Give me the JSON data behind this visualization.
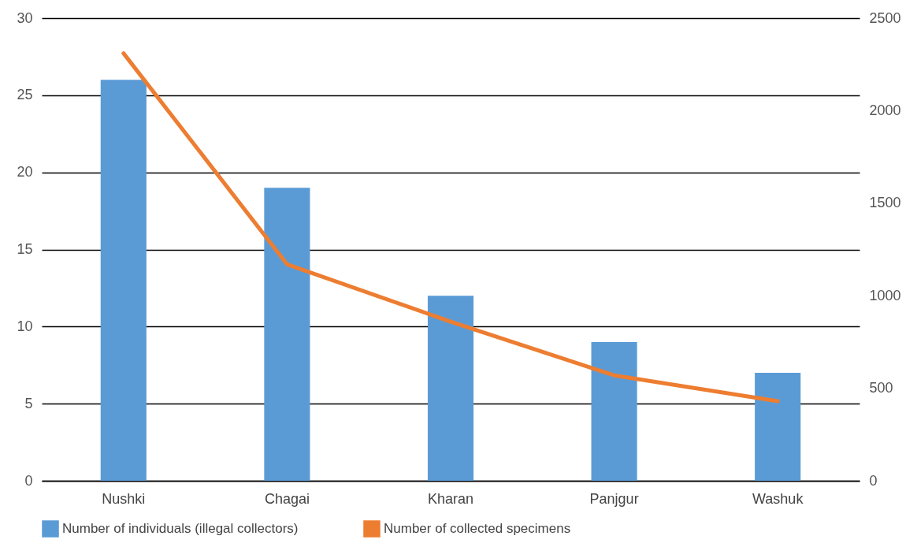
{
  "chart_data": {
    "type": "bar",
    "categories": [
      "Nushki",
      "Chagai",
      "Kharan",
      "Panjgur",
      "Washuk"
    ],
    "series": [
      {
        "name": "Number of individuals (illegal collectors)",
        "type": "bar",
        "color": "#5b9bd5",
        "values": [
          26,
          19,
          12,
          9,
          7
        ]
      },
      {
        "name": "Number of collected specimens",
        "type": "line",
        "axis": "y2",
        "color": "#ed7d31",
        "values": [
          2310,
          1170,
          860,
          570,
          430
        ]
      }
    ],
    "ylim": [
      0,
      30
    ],
    "yticks": [
      0,
      5,
      10,
      15,
      20,
      25,
      30
    ],
    "y2lim": [
      0,
      2500
    ],
    "y2ticks": [
      0,
      500,
      1000,
      1500,
      2000,
      2500
    ],
    "grid": "y",
    "legend": "bottom"
  }
}
